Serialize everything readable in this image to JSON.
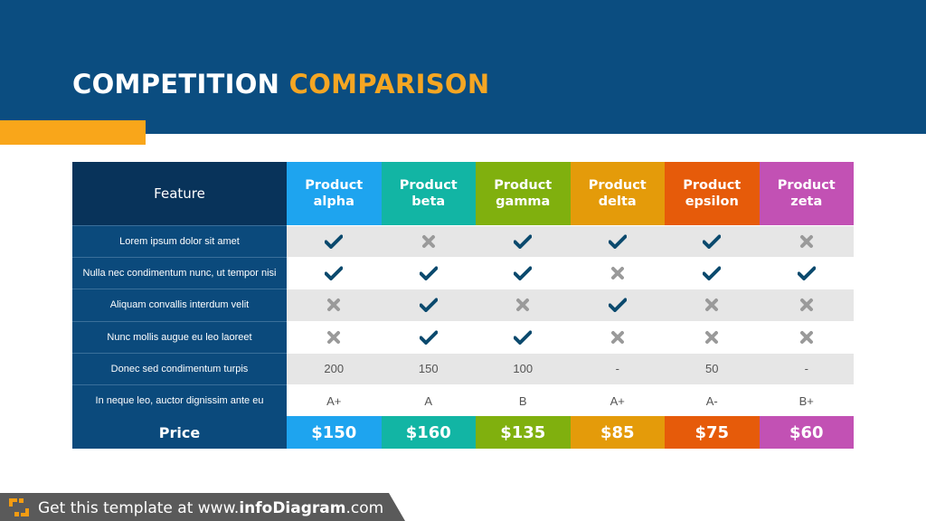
{
  "title": {
    "part1": "COMPETITION",
    "part2": "COMPARISON"
  },
  "colors": {
    "header_bg": "#0b4d80",
    "accent": "#f9a61a",
    "feature_col": "#0b4a7c",
    "check": "#0b4a6e",
    "cross": "#9a9a9a"
  },
  "table": {
    "feature_header": "Feature",
    "products": [
      {
        "line1": "Product",
        "line2": "alpha",
        "color": "#1ea4ef",
        "price": "$150"
      },
      {
        "line1": "Product",
        "line2": "beta",
        "color": "#12b5a4",
        "price": "$160"
      },
      {
        "line1": "Product",
        "line2": "gamma",
        "color": "#80b00e",
        "price": "$135"
      },
      {
        "line1": "Product",
        "line2": "delta",
        "color": "#e49b0a",
        "price": "$85"
      },
      {
        "line1": "Product",
        "line2": "epsilon",
        "color": "#e65b0a",
        "price": "$75"
      },
      {
        "line1": "Product",
        "line2": "zeta",
        "color": "#c251b4",
        "price": "$60"
      }
    ],
    "rows": [
      {
        "feature": "Lorem ipsum dolor sit amet",
        "values": [
          "check",
          "cross",
          "check",
          "check",
          "check",
          "cross"
        ]
      },
      {
        "feature": "Nulla nec condimentum nunc, ut tempor nisi",
        "values": [
          "check",
          "check",
          "check",
          "cross",
          "check",
          "check"
        ]
      },
      {
        "feature": "Aliquam convallis interdum velit",
        "values": [
          "cross",
          "check",
          "cross",
          "check",
          "cross",
          "cross"
        ]
      },
      {
        "feature": "Nunc mollis augue eu leo laoreet",
        "values": [
          "cross",
          "check",
          "check",
          "cross",
          "cross",
          "cross"
        ]
      },
      {
        "feature": "Donec sed condimentum turpis",
        "values": [
          "200",
          "150",
          "100",
          "-",
          "50",
          "-"
        ]
      },
      {
        "feature": "In neque leo, auctor dignissim ante eu",
        "values": [
          "A+",
          "A",
          "B",
          "A+",
          "A-",
          "B+"
        ]
      }
    ],
    "price_label": "Price"
  },
  "footer": {
    "prefix": "Get this template at www.",
    "brand": "infoDiagram",
    "suffix": ".com",
    "logo_icon": "infodiagram-logo-icon"
  }
}
